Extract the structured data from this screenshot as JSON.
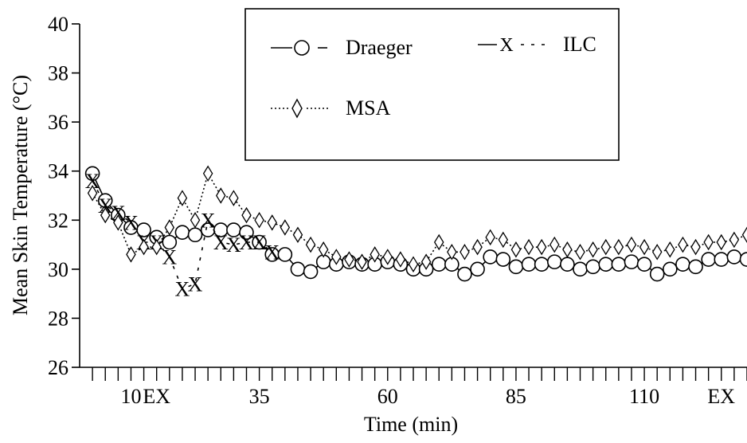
{
  "chart_data": {
    "type": "line",
    "title": "",
    "xlabel": "Time (min)",
    "ylabel": "Mean Skin Temperature (°C)",
    "ylim": [
      26,
      40
    ],
    "yticks": [
      26,
      28,
      30,
      32,
      34,
      36,
      38,
      40
    ],
    "xlim": [
      0,
      130
    ],
    "xtick_labels": [
      {
        "x": 10,
        "label": "10"
      },
      {
        "x": 15,
        "label": "EX"
      },
      {
        "x": 35,
        "label": "35"
      },
      {
        "x": 60,
        "label": "60"
      },
      {
        "x": 85,
        "label": "85"
      },
      {
        "x": 110,
        "label": "110"
      },
      {
        "x": 125,
        "label": "EX"
      }
    ],
    "grid": false,
    "legend": "top-center, boxed",
    "series": [
      {
        "name": "Draeger",
        "marker": "circle",
        "line": "solid",
        "points": [
          [
            2.5,
            33.9
          ],
          [
            5,
            32.8
          ],
          [
            7.5,
            32.2
          ],
          [
            10,
            31.7
          ],
          [
            12.5,
            31.6
          ],
          [
            15,
            31.3
          ],
          [
            17.5,
            31.1
          ],
          [
            20,
            31.5
          ],
          [
            22.5,
            31.4
          ],
          [
            25,
            31.6
          ],
          [
            27.5,
            31.6
          ],
          [
            30,
            31.6
          ],
          [
            32.5,
            31.5
          ],
          [
            35,
            31.1
          ],
          [
            37.5,
            30.6
          ],
          [
            40,
            30.6
          ],
          [
            42.5,
            30.0
          ],
          [
            45,
            29.9
          ],
          [
            47.5,
            30.3
          ],
          [
            50,
            30.2
          ],
          [
            52.5,
            30.3
          ],
          [
            55,
            30.2
          ],
          [
            57.5,
            30.2
          ],
          [
            60,
            30.3
          ],
          [
            62.5,
            30.2
          ],
          [
            65,
            30.0
          ],
          [
            67.5,
            30.0
          ],
          [
            70,
            30.2
          ],
          [
            72.5,
            30.2
          ],
          [
            75,
            29.8
          ],
          [
            77.5,
            30.0
          ],
          [
            80,
            30.5
          ],
          [
            82.5,
            30.4
          ],
          [
            85,
            30.1
          ],
          [
            87.5,
            30.2
          ],
          [
            90,
            30.2
          ],
          [
            92.5,
            30.3
          ],
          [
            95,
            30.2
          ],
          [
            97.5,
            30.0
          ],
          [
            100,
            30.1
          ],
          [
            102.5,
            30.2
          ],
          [
            105,
            30.2
          ],
          [
            107.5,
            30.3
          ],
          [
            110,
            30.2
          ],
          [
            112.5,
            29.8
          ],
          [
            115,
            30.0
          ],
          [
            117.5,
            30.2
          ],
          [
            120,
            30.1
          ],
          [
            122.5,
            30.4
          ],
          [
            125,
            30.4
          ],
          [
            127.5,
            30.5
          ],
          [
            130,
            30.4
          ]
        ]
      },
      {
        "name": "ILC",
        "marker": "x",
        "line": "dashed",
        "points": [
          [
            2.5,
            33.6
          ],
          [
            5,
            32.6
          ],
          [
            7.5,
            32.3
          ],
          [
            10,
            31.9
          ],
          [
            12.5,
            31.1
          ],
          [
            15,
            31.1
          ],
          [
            17.5,
            30.5
          ],
          [
            20,
            29.2
          ],
          [
            22.5,
            29.4
          ],
          [
            25,
            32.0
          ],
          [
            27.5,
            31.1
          ],
          [
            30,
            31.0
          ],
          [
            32.5,
            31.1
          ],
          [
            35,
            31.1
          ],
          [
            37.5,
            30.7
          ]
        ]
      },
      {
        "name": "MSA",
        "marker": "diamond",
        "line": "dotted",
        "points": [
          [
            2.5,
            33.1
          ],
          [
            5,
            32.2
          ],
          [
            7.5,
            31.9
          ],
          [
            10,
            30.6
          ],
          [
            12.5,
            30.9
          ],
          [
            15,
            30.9
          ],
          [
            17.5,
            31.7
          ],
          [
            20,
            32.9
          ],
          [
            22.5,
            32.0
          ],
          [
            25,
            33.9
          ],
          [
            27.5,
            33.0
          ],
          [
            30,
            32.9
          ],
          [
            32.5,
            32.2
          ],
          [
            35,
            32.0
          ],
          [
            37.5,
            31.9
          ],
          [
            40,
            31.7
          ],
          [
            42.5,
            31.4
          ],
          [
            45,
            31.0
          ],
          [
            47.5,
            30.8
          ],
          [
            50,
            30.5
          ],
          [
            52.5,
            30.4
          ],
          [
            55,
            30.3
          ],
          [
            57.5,
            30.6
          ],
          [
            60,
            30.5
          ],
          [
            62.5,
            30.4
          ],
          [
            65,
            30.2
          ],
          [
            67.5,
            30.3
          ],
          [
            70,
            31.1
          ],
          [
            72.5,
            30.7
          ],
          [
            75,
            30.7
          ],
          [
            77.5,
            30.9
          ],
          [
            80,
            31.3
          ],
          [
            82.5,
            31.2
          ],
          [
            85,
            30.8
          ],
          [
            87.5,
            30.9
          ],
          [
            90,
            30.9
          ],
          [
            92.5,
            31.0
          ],
          [
            95,
            30.8
          ],
          [
            97.5,
            30.7
          ],
          [
            100,
            30.8
          ],
          [
            102.5,
            30.9
          ],
          [
            105,
            30.9
          ],
          [
            107.5,
            31.0
          ],
          [
            110,
            30.9
          ],
          [
            112.5,
            30.7
          ],
          [
            115,
            30.8
          ],
          [
            117.5,
            31.0
          ],
          [
            120,
            30.9
          ],
          [
            122.5,
            31.1
          ],
          [
            125,
            31.1
          ],
          [
            127.5,
            31.2
          ],
          [
            130,
            31.4
          ]
        ]
      }
    ]
  }
}
